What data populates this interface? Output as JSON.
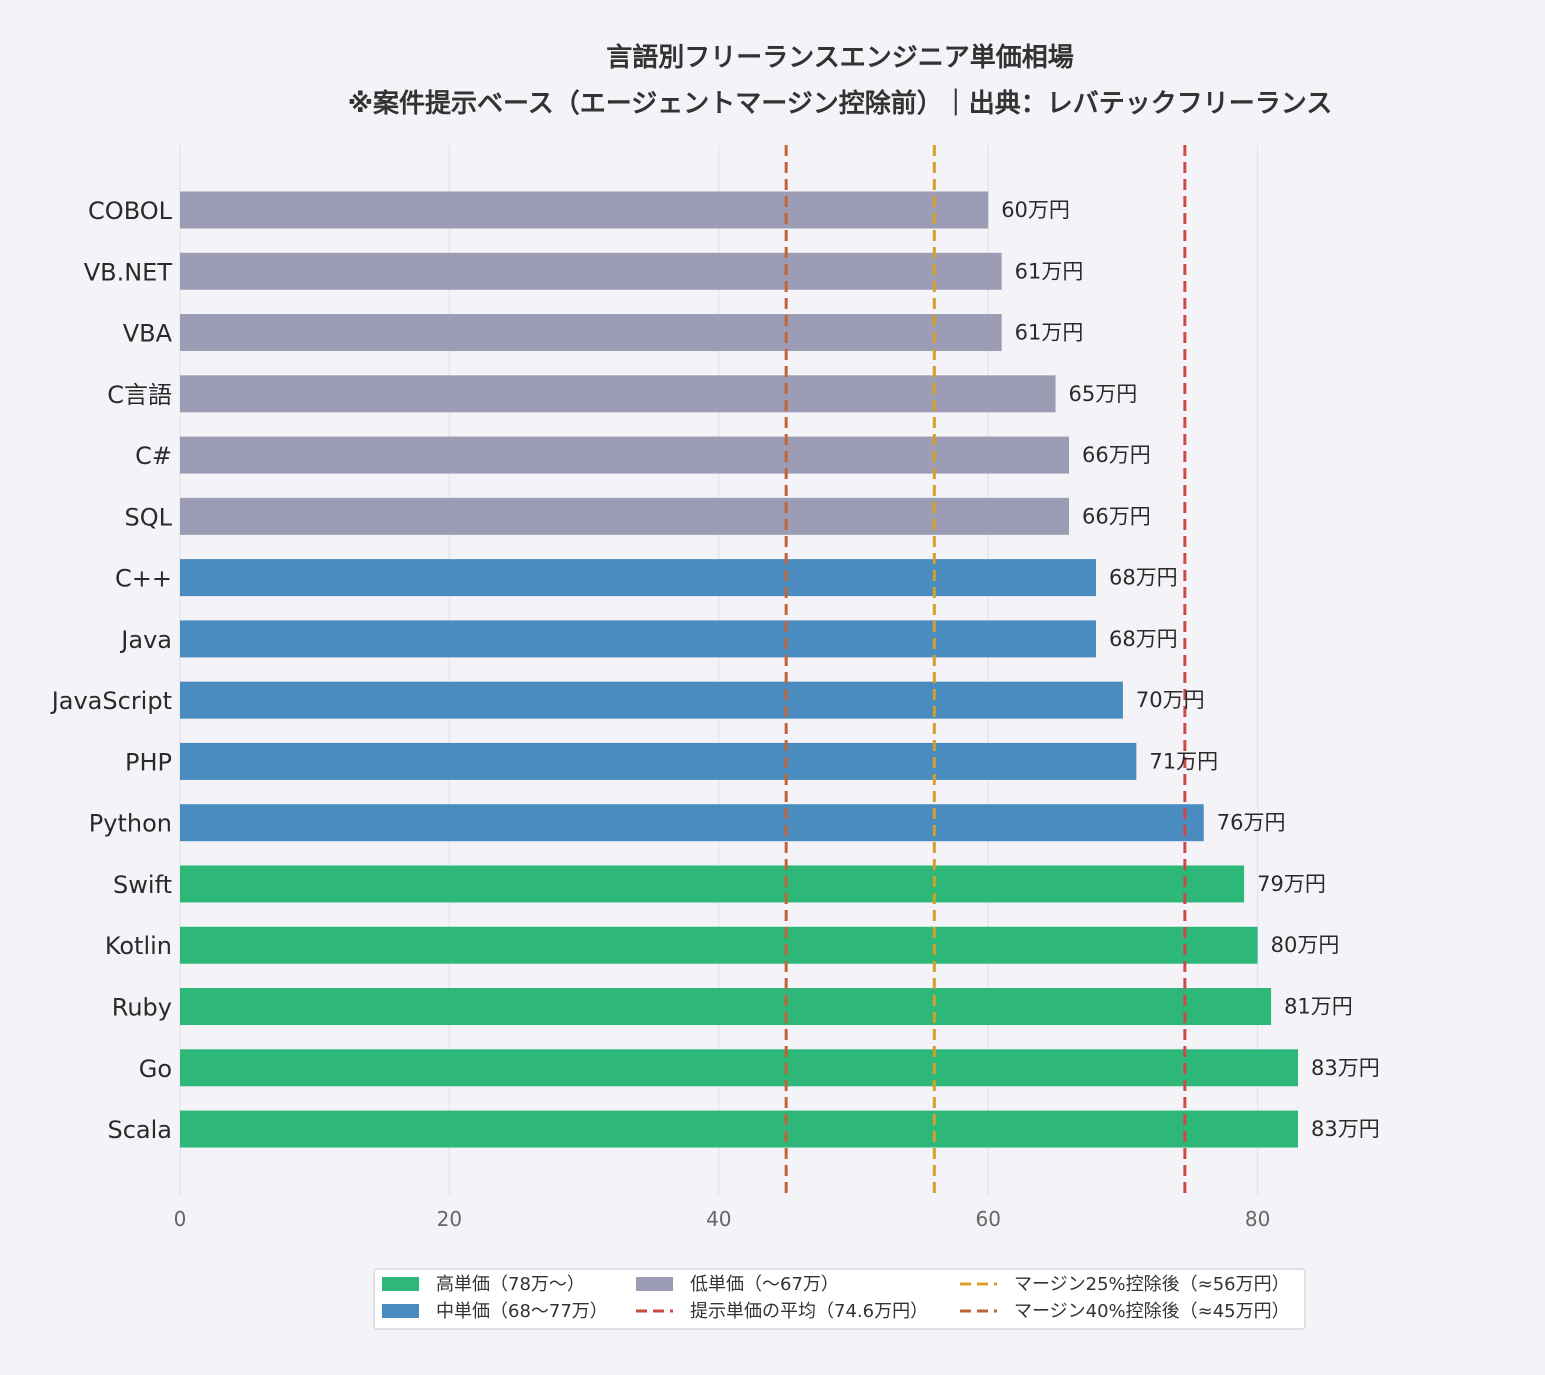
{
  "chart_data": {
    "type": "bar",
    "orientation": "horizontal",
    "title": "言語別フリーランスエンジニア単価相場",
    "subtitle": "※案件提示ベース（エージェントマージン控除前）｜出典：レバテックフリーランス",
    "value_suffix": "万円",
    "xlim": [
      0,
      90
    ],
    "xticks": [
      0,
      20,
      40,
      60,
      80
    ],
    "grid": "vertical",
    "legend_position": "bottom",
    "categories": [
      "COBOL",
      "VB.NET",
      "VBA",
      "C言語",
      "C#",
      "SQL",
      "C++",
      "Java",
      "JavaScript",
      "PHP",
      "Python",
      "Swift",
      "Kotlin",
      "Ruby",
      "Go",
      "Scala"
    ],
    "values": [
      60,
      61,
      61,
      65,
      66,
      66,
      68,
      68,
      70,
      71,
      76,
      79,
      80,
      81,
      83,
      83
    ],
    "tiers": [
      "low",
      "low",
      "low",
      "low",
      "low",
      "low",
      "mid",
      "mid",
      "mid",
      "mid",
      "mid",
      "high",
      "high",
      "high",
      "high",
      "high"
    ],
    "colors": {
      "high": "#2db87a",
      "mid": "#4a8bc0",
      "low": "#9c9cb4"
    },
    "reference_lines": [
      {
        "value": 74.6,
        "color": "#cc4a44"
      },
      {
        "value": 56,
        "color": "#d4a02a"
      },
      {
        "value": 45,
        "color": "#c0643a"
      }
    ],
    "legend": [
      {
        "label": "高単価（78万〜）",
        "kind": "bar",
        "color": "#2db87a"
      },
      {
        "label": "中単価（68〜77万）",
        "kind": "bar",
        "color": "#4a8bc0"
      },
      {
        "label": "低単価（〜67万）",
        "kind": "bar",
        "color": "#9c9cb4"
      },
      {
        "label": "提示単価の平均（74.6万円）",
        "kind": "line",
        "color": "#cc4a44"
      },
      {
        "label": "マージン25%控除後（≈56万円）",
        "kind": "line",
        "color": "#d4a02a"
      },
      {
        "label": "マージン40%控除後（≈45万円）",
        "kind": "line",
        "color": "#c0643a"
      }
    ]
  }
}
